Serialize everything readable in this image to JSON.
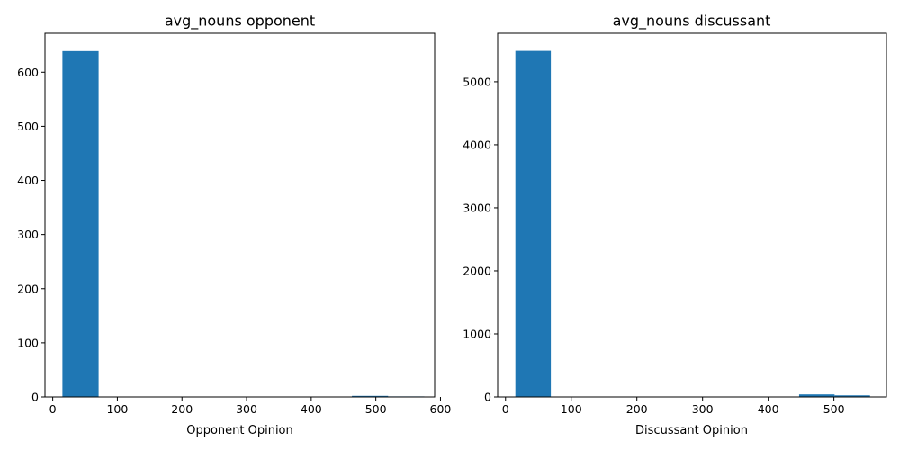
{
  "chart_data": [
    {
      "type": "bar",
      "title": "avg_nouns opponent",
      "xlabel": "Opponent Opinion",
      "ylabel": "",
      "xlim": [
        -12,
        591
      ],
      "ylim": [
        0,
        672
      ],
      "xticks": [
        0,
        100,
        200,
        300,
        400,
        500,
        600
      ],
      "yticks": [
        0,
        100,
        200,
        300,
        400,
        500,
        600
      ],
      "bins": [
        {
          "x0": 15,
          "x1": 71,
          "count": 639
        },
        {
          "x0": 71,
          "x1": 127,
          "count": 0
        },
        {
          "x0": 127,
          "x1": 183,
          "count": 0
        },
        {
          "x0": 183,
          "x1": 239,
          "count": 0
        },
        {
          "x0": 239,
          "x1": 295,
          "count": 0
        },
        {
          "x0": 295,
          "x1": 351,
          "count": 0
        },
        {
          "x0": 351,
          "x1": 407,
          "count": 0
        },
        {
          "x0": 407,
          "x1": 463,
          "count": 0
        },
        {
          "x0": 463,
          "x1": 519,
          "count": 2
        },
        {
          "x0": 519,
          "x1": 575,
          "count": 1
        }
      ],
      "color": "#1f77b4"
    },
    {
      "type": "bar",
      "title": "avg_nouns discussant",
      "xlabel": "Discussant Opinion",
      "ylabel": "",
      "xlim": [
        -12,
        580
      ],
      "ylim": [
        0,
        5770
      ],
      "xticks": [
        0,
        100,
        200,
        300,
        400,
        500
      ],
      "yticks": [
        0,
        1000,
        2000,
        3000,
        4000,
        5000
      ],
      "bins": [
        {
          "x0": 15,
          "x1": 69,
          "count": 5490
        },
        {
          "x0": 69,
          "x1": 123,
          "count": 0
        },
        {
          "x0": 123,
          "x1": 177,
          "count": 0
        },
        {
          "x0": 177,
          "x1": 231,
          "count": 0
        },
        {
          "x0": 231,
          "x1": 285,
          "count": 0
        },
        {
          "x0": 285,
          "x1": 339,
          "count": 0
        },
        {
          "x0": 339,
          "x1": 393,
          "count": 0
        },
        {
          "x0": 393,
          "x1": 447,
          "count": 0
        },
        {
          "x0": 447,
          "x1": 501,
          "count": 40
        },
        {
          "x0": 501,
          "x1": 555,
          "count": 25
        }
      ],
      "color": "#1f77b4"
    }
  ]
}
